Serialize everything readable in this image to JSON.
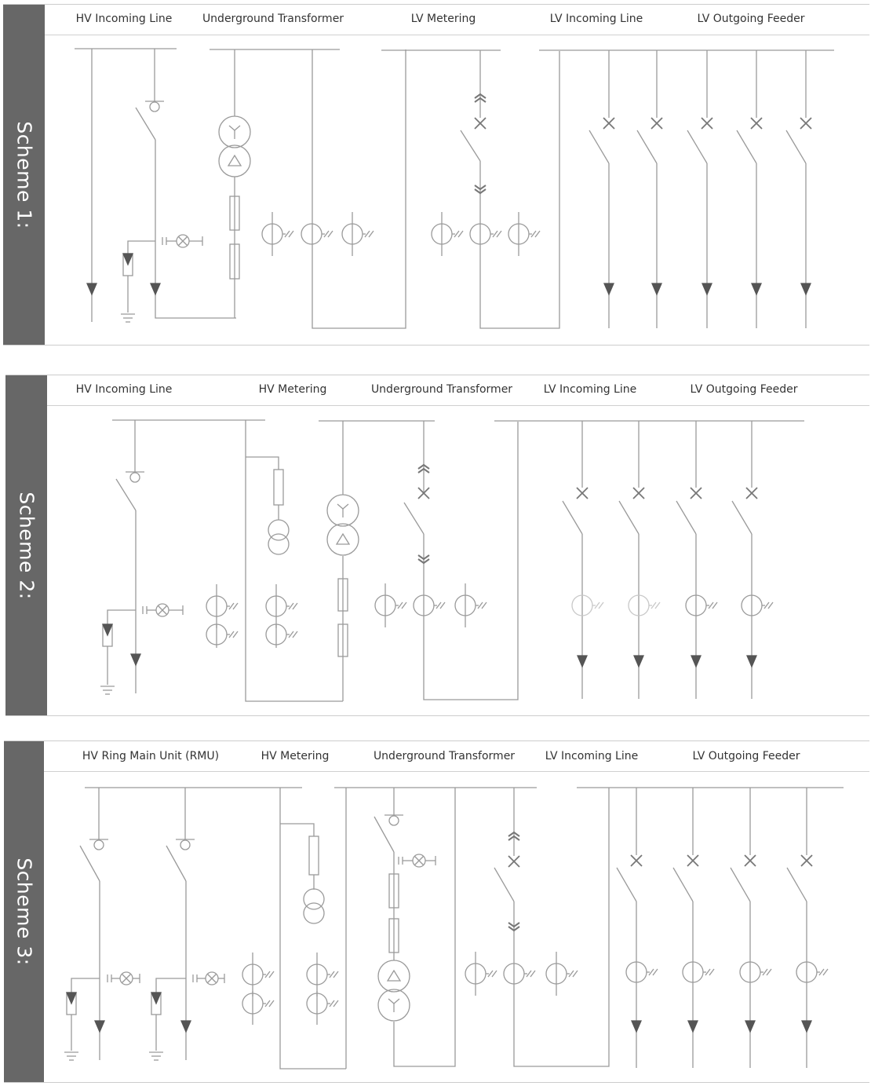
{
  "schemes": [
    {
      "label": "Scheme 1:",
      "headers": [
        "HV Incoming Line",
        "Underground Transformer",
        "LV Metering",
        "LV Incoming Line",
        "LV Outgoing Feeder"
      ]
    },
    {
      "label": "Scheme 2:",
      "headers": [
        "HV Incoming Line",
        "HV Metering",
        "Underground Transformer",
        "LV Incoming Line",
        "LV Outgoing Feeder"
      ]
    },
    {
      "label": "Scheme 3:",
      "headers": [
        "HV Ring Main Unit (RMU)",
        "HV Metering",
        "Underground Transformer",
        "LV Incoming Line",
        "LV Outgoing Feeder"
      ]
    }
  ],
  "colors": {
    "label_bar": "#676767",
    "line": "#9a9a9a",
    "symbol_fill": "#555555",
    "text": "#333333"
  }
}
